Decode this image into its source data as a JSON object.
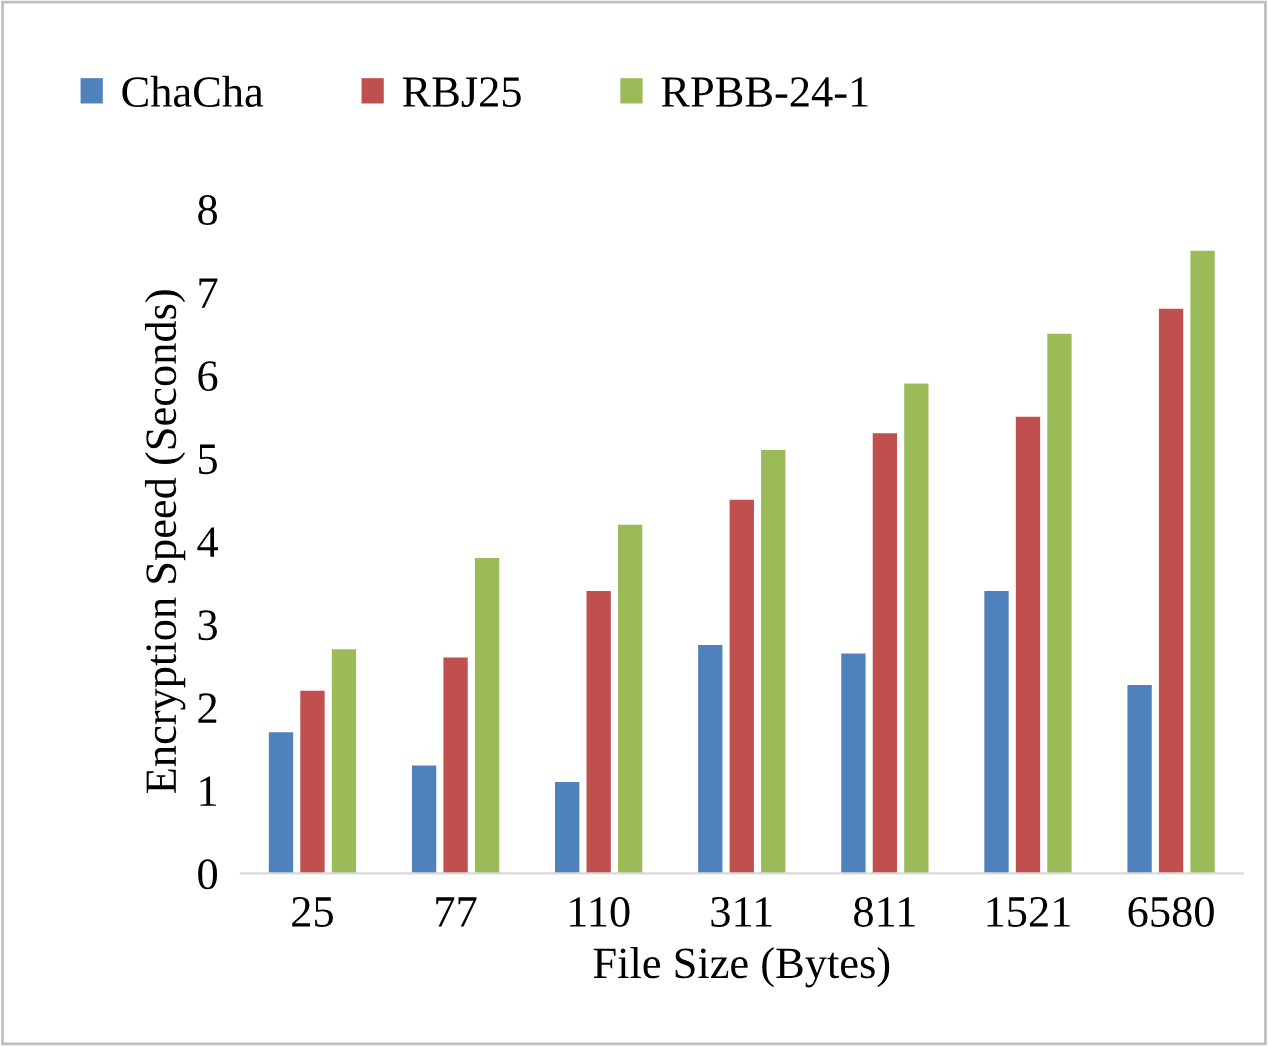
{
  "chart_data": {
    "type": "bar",
    "xlabel": "File Size (Bytes)",
    "ylabel": "Encryption Speed (Seconds)",
    "categories": [
      "25",
      "77",
      "110",
      "311",
      "811",
      "1521",
      "6580"
    ],
    "series": [
      {
        "name": "ChaCha",
        "color": "#4f81bd",
        "values": [
          1.7,
          1.3,
          1.1,
          2.75,
          2.65,
          3.4,
          2.27
        ]
      },
      {
        "name": "RBJ25",
        "color": "#c0504d",
        "values": [
          2.2,
          2.6,
          3.4,
          4.5,
          5.3,
          5.5,
          6.8
        ]
      },
      {
        "name": "RPBB-24-1",
        "color": "#9bbb59",
        "values": [
          2.7,
          3.8,
          4.2,
          5.1,
          5.9,
          6.5,
          7.5
        ]
      }
    ],
    "ylim": [
      0,
      8
    ],
    "yticks": [
      0,
      1,
      2,
      3,
      4,
      5,
      6,
      7,
      8
    ],
    "grid": false,
    "legend": "top"
  }
}
